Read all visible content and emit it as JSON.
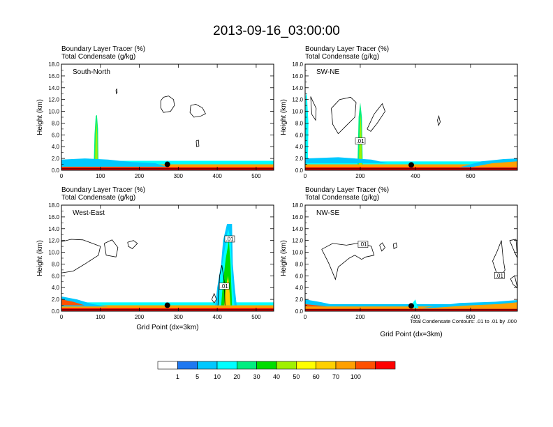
{
  "title": "2013-09-16_03:00:00",
  "field_labels": [
    "Boundary Layer Tracer   (%)",
    "Total Condensate   (g/kg)"
  ],
  "ylabel": "Height (km)",
  "xlabel": "Grid Point (dx=3km)",
  "footnote": "Total Condensate Contours: .01 to .01 by .000",
  "colors": {
    "levels": [
      "#ffffff",
      "#1e78f0",
      "#00c8ff",
      "#00ffff",
      "#00ee80",
      "#00dd00",
      "#a0f000",
      "#ffff00",
      "#ffd000",
      "#ffa000",
      "#ff5000",
      "#ff0000"
    ],
    "contour": "#000000",
    "marker": "#000000"
  },
  "colorbar": {
    "labels": [
      "1",
      "5",
      "10",
      "20",
      "30",
      "40",
      "50",
      "60",
      "70",
      "100"
    ]
  },
  "chart_data": [
    {
      "type": "heatmap",
      "panel": "South-North",
      "xlim": [
        0,
        545
      ],
      "ylim": [
        0,
        18
      ],
      "xticks": [
        0,
        100,
        200,
        300,
        400,
        500
      ],
      "yticks": [
        "0.0",
        "2.0",
        "4.0",
        "6.0",
        "8.0",
        "10.0",
        "12.0",
        "14.0",
        "16.0",
        "18.0"
      ],
      "marker": {
        "x": 272,
        "y": 1.0
      },
      "contour_labels": []
    },
    {
      "type": "heatmap",
      "panel": "SW-NE",
      "xlim": [
        0,
        770
      ],
      "ylim": [
        0,
        18
      ],
      "xticks": [
        0,
        200,
        400,
        600
      ],
      "yticks": [
        "0.0",
        "2.0",
        "4.0",
        "6.0",
        "8.0",
        "10.0",
        "12.0",
        "14.0",
        "16.0",
        "18.0"
      ],
      "marker": {
        "x": 385,
        "y": 0.9
      },
      "contour_labels": [
        {
          "text": ".01",
          "x": 200,
          "y": 4.9
        }
      ]
    },
    {
      "type": "heatmap",
      "panel": "West-East",
      "xlim": [
        0,
        545
      ],
      "ylim": [
        0,
        18
      ],
      "xticks": [
        0,
        100,
        200,
        300,
        400,
        500
      ],
      "yticks": [
        "0.0",
        "2.0",
        "4.0",
        "6.0",
        "8.0",
        "10.0",
        "12.0",
        "14.0",
        "16.0",
        "18.0"
      ],
      "marker": {
        "x": 272,
        "y": 1.0
      },
      "contour_labels": [
        {
          "text": ".01",
          "x": 432,
          "y": 12.2
        },
        {
          "text": ".01",
          "x": 418,
          "y": 4.2
        }
      ]
    },
    {
      "type": "heatmap",
      "panel": "NW-SE",
      "xlim": [
        0,
        770
      ],
      "ylim": [
        0,
        18
      ],
      "xticks": [
        0,
        200,
        400,
        600
      ],
      "yticks": [
        "0.0",
        "2.0",
        "4.0",
        "6.0",
        "8.0",
        "10.0",
        "12.0",
        "14.0",
        "16.0",
        "18.0"
      ],
      "marker": {
        "x": 385,
        "y": 0.9
      },
      "contour_labels": [
        {
          "text": ".01",
          "x": 210,
          "y": 11.3
        },
        {
          "text": ".01",
          "x": 705,
          "y": 6.0
        }
      ]
    }
  ]
}
